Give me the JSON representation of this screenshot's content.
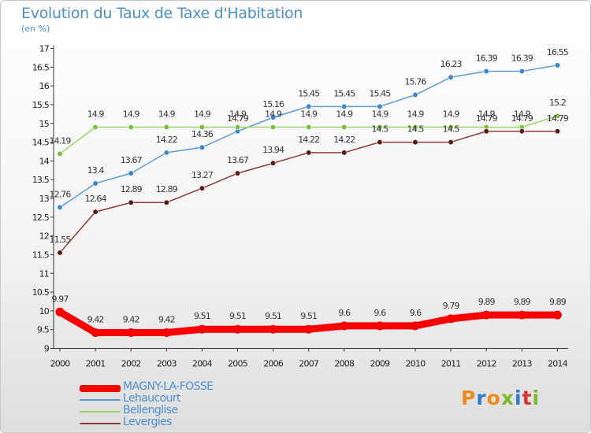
{
  "title": "Evolution du Taux de Taxe d'Habitation",
  "unit_label": "(en %)",
  "logo_text": "Proxiti",
  "chart_data": {
    "type": "line",
    "title": "Evolution du Taux de Taxe d'Habitation",
    "ylabel": "(en %)",
    "xlabel": "",
    "ylim": [
      9,
      17
    ],
    "ytick_step": 0.5,
    "grid": false,
    "legend_position": "bottom-left",
    "x": [
      "2000",
      "2001",
      "2002",
      "2003",
      "2004",
      "2005",
      "2006",
      "2007",
      "2008",
      "2009",
      "2010",
      "2011",
      "2012",
      "2013",
      "2014"
    ],
    "series": [
      {
        "name": "Lehaucourt",
        "color": "#5b9bd5",
        "marker": "#3e87cc",
        "width": 1.5,
        "values": [
          12.76,
          13.4,
          13.67,
          14.22,
          14.36,
          14.79,
          15.16,
          15.45,
          15.45,
          15.45,
          15.76,
          16.23,
          16.39,
          16.39,
          16.55
        ],
        "labels": [
          "12.76",
          "13.4",
          "13.67",
          "14.22",
          "14.36",
          "14.79",
          "15.16",
          "15.45",
          "15.45",
          "15.45",
          "15.76",
          "16.23",
          "16.39",
          "16.39",
          "16.55"
        ]
      },
      {
        "name": "Bellenglise",
        "color": "#9ed36a",
        "marker": "#7ac142",
        "width": 1.5,
        "values": [
          14.19,
          14.9,
          14.9,
          14.9,
          14.9,
          14.9,
          14.9,
          14.9,
          14.9,
          14.9,
          14.9,
          14.9,
          14.9,
          14.9,
          15.2
        ],
        "labels": [
          "14.19",
          "14.9",
          "14.9",
          "14.9",
          "14.9",
          "14.9",
          "14.9",
          "14.9",
          "14.9",
          "14.9",
          "14.9",
          "14.9",
          "14.9",
          "14.9",
          "15.2"
        ]
      },
      {
        "name": "Levergies",
        "color": "#8b3a3a",
        "marker": "#5a1a1a",
        "width": 1.5,
        "values": [
          11.55,
          12.64,
          12.89,
          12.89,
          13.27,
          13.67,
          13.94,
          14.22,
          14.22,
          14.5,
          14.5,
          14.5,
          14.79,
          14.79,
          14.79
        ],
        "labels": [
          "11.55",
          "12.64",
          "12.89",
          "12.89",
          "13.27",
          "13.67",
          "13.94",
          "14.22",
          "14.22",
          "14.5",
          "14.5",
          "14.5",
          "14.79",
          "14.79",
          "14.79"
        ]
      },
      {
        "name": "MAGNY-LA-FOSSE",
        "color": "#ff0000",
        "marker": "#ff0000",
        "width": 9,
        "values": [
          9.97,
          9.42,
          9.42,
          9.42,
          9.51,
          9.51,
          9.51,
          9.51,
          9.6,
          9.6,
          9.6,
          9.79,
          9.89,
          9.89,
          9.89
        ],
        "labels": [
          "9.97",
          "9.42",
          "9.42",
          "9.42",
          "9.51",
          "9.51",
          "9.51",
          "9.51",
          "9.6",
          "9.6",
          "9.6",
          "9.79",
          "9.89",
          "9.89",
          "9.89"
        ]
      }
    ],
    "legend_order": [
      "MAGNY-LA-FOSSE",
      "Lehaucourt",
      "Bellenglise",
      "Levergies"
    ]
  }
}
